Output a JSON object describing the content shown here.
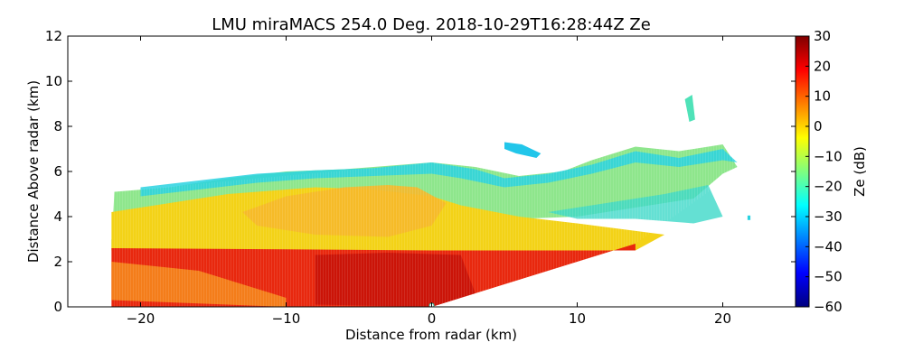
{
  "chart_data": {
    "type": "heatmap",
    "title": "LMU miraMACS 254.0 Deg. 2018-10-29T16:28:44Z  Ze",
    "xlabel": "Distance from radar (km)",
    "ylabel": "Distance Above radar  (km)",
    "xlim": [
      -25,
      25
    ],
    "ylim": [
      0,
      12
    ],
    "xticks": [
      -20,
      -10,
      0,
      10,
      20
    ],
    "xtick_labels": [
      "−20",
      "−10",
      "0",
      "10",
      "20"
    ],
    "yticks": [
      0,
      2,
      4,
      6,
      8,
      10,
      12
    ],
    "ytick_labels": [
      "0",
      "2",
      "4",
      "6",
      "8",
      "10",
      "12"
    ],
    "colorbar": {
      "label": "Ze (dB)",
      "range": [
        -60,
        30
      ],
      "ticks": [
        30,
        20,
        10,
        0,
        -10,
        -20,
        -30,
        -40,
        -50,
        -60
      ],
      "tick_labels": [
        "30",
        "20",
        "10",
        "0",
        "−10",
        "−20",
        "−30",
        "−40",
        "−50",
        "−60"
      ],
      "colormap": "jet"
    },
    "layers": [
      {
        "name": "low-layer",
        "ze_db": 22,
        "x_range": [
          -22,
          14
        ],
        "y_range": [
          0,
          2.5
        ],
        "color": "#e8280e"
      },
      {
        "name": "low-layer-core",
        "ze_db": 26,
        "x_range": [
          -8,
          3
        ],
        "y_range": [
          0,
          2.4
        ],
        "color": "#c81208"
      },
      {
        "name": "mid-layer",
        "ze_db": 8,
        "x_range": [
          -22,
          14
        ],
        "y_range": [
          2.5,
          4.5
        ],
        "color": "#f3d217"
      },
      {
        "name": "mid-layer-orange",
        "ze_db": 12,
        "x_range": [
          -13,
          1
        ],
        "y_range": [
          3.0,
          5.5
        ],
        "color": "#f6b82a"
      },
      {
        "name": "upper-layer",
        "ze_db": -15,
        "x_range": [
          -22,
          21
        ],
        "y_range": [
          3.5,
          7.5
        ],
        "color": "#8ee68c"
      },
      {
        "name": "cloud-top-edge",
        "ze_db": -28,
        "x_range": [
          -20,
          21
        ],
        "y_range": [
          4.2,
          6.5
        ],
        "color": "#2ad2e0"
      },
      {
        "name": "fragment-upper",
        "ze_db": -22,
        "x_range": [
          17.4,
          18.1
        ],
        "y_range": [
          8.2,
          9.4
        ],
        "color": "#4fe2b8"
      },
      {
        "name": "fragment-mid",
        "ze_db": -30,
        "x_range": [
          5,
          7.5
        ],
        "y_range": [
          6.7,
          7.3
        ],
        "color": "#22c6ea"
      }
    ]
  }
}
